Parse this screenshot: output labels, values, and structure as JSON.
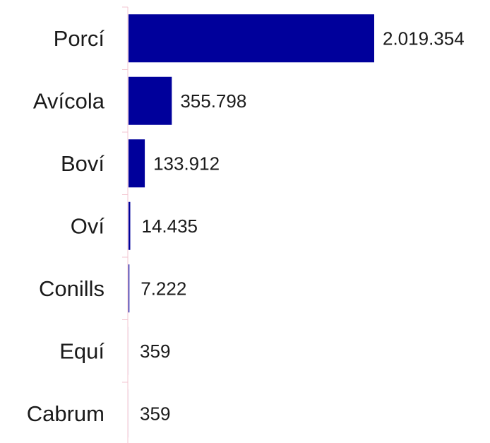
{
  "chart_data": {
    "type": "bar",
    "orientation": "horizontal",
    "categories": [
      "Porcí",
      "Avícola",
      "Boví",
      "Oví",
      "Conills",
      "Equí",
      "Cabrum"
    ],
    "values": [
      2019354,
      355798,
      133912,
      14435,
      7222,
      359,
      359
    ],
    "value_labels": [
      "2.019.354",
      "355.798",
      "133.912",
      "14.435",
      "7.222",
      "359",
      "359"
    ],
    "xlim": [
      0,
      2019354
    ],
    "bar_color": "#00009b",
    "axis_color": "#f3c6d0",
    "grid": false,
    "title": "",
    "xlabel": "",
    "ylabel": ""
  }
}
